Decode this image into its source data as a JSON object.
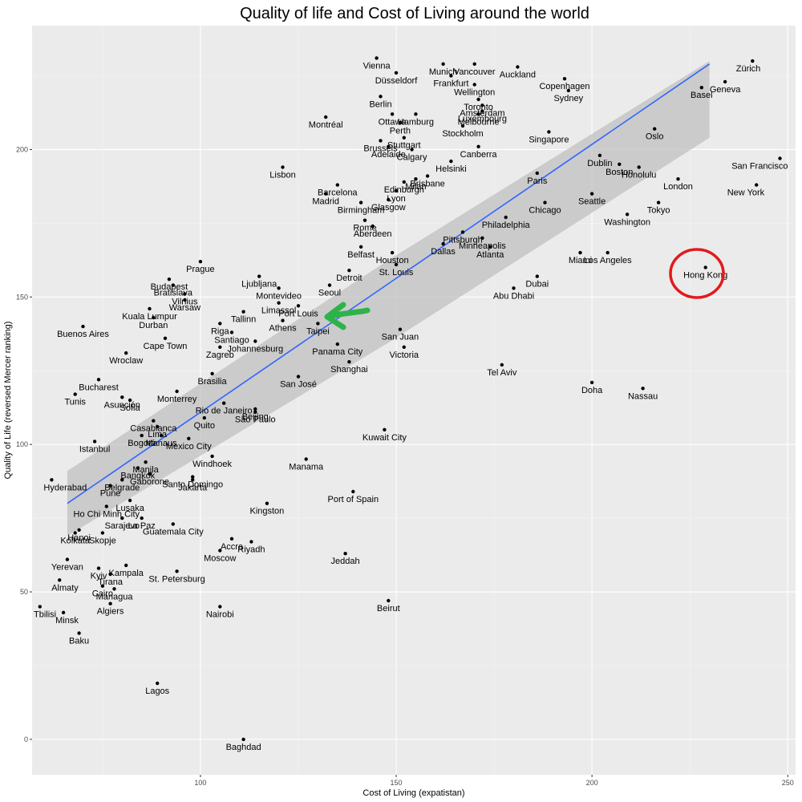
{
  "chart_data": {
    "type": "scatter",
    "title": "Quality of life and Cost of Living around the world",
    "xlabel": "Cost of Living (expatistan)",
    "ylabel": "Quality of Life (reversed Mercer ranking)",
    "xlim": [
      57,
      252
    ],
    "ylim": [
      -12,
      242
    ],
    "xticks": [
      100,
      150,
      200,
      250
    ],
    "yticks": [
      0,
      50,
      100,
      150,
      200
    ],
    "grid": true,
    "background": "#ebebeb",
    "grid_color": "#ffffff",
    "point_color": "#000000",
    "trend": {
      "method": "linear fit with confidence band",
      "color": "#3366ff",
      "band_color": "#bdbdbd",
      "x": [
        66,
        230
      ],
      "y": [
        80,
        229
      ],
      "band_upper": [
        91,
        230
      ],
      "band_lower": [
        69,
        204
      ]
    },
    "annotations": [
      {
        "type": "circle",
        "color": "#e31a1c",
        "label": "Hong Kong"
      },
      {
        "type": "arrow",
        "color": "#2db34a",
        "label": "Taipei"
      }
    ],
    "points": [
      {
        "city": "Zürich",
        "x": 241,
        "y": 230
      },
      {
        "city": "Geneva",
        "x": 234,
        "y": 223
      },
      {
        "city": "Vienna",
        "x": 145,
        "y": 231
      },
      {
        "city": "Munich",
        "x": 162,
        "y": 229
      },
      {
        "city": "Vancouver",
        "x": 170,
        "y": 229
      },
      {
        "city": "Auckland",
        "x": 181,
        "y": 228
      },
      {
        "city": "Düsseldorf",
        "x": 150,
        "y": 226
      },
      {
        "city": "Frankfurt",
        "x": 164,
        "y": 225
      },
      {
        "city": "Copenhagen",
        "x": 193,
        "y": 224
      },
      {
        "city": "Wellington",
        "x": 170,
        "y": 222
      },
      {
        "city": "Basel",
        "x": 228,
        "y": 221
      },
      {
        "city": "Berlin",
        "x": 146,
        "y": 218
      },
      {
        "city": "Toronto",
        "x": 171,
        "y": 217
      },
      {
        "city": "Amsterdam",
        "x": 172,
        "y": 215
      },
      {
        "city": "Sydney",
        "x": 194,
        "y": 220
      },
      {
        "city": "Ottawa",
        "x": 149,
        "y": 212
      },
      {
        "city": "Hamburg",
        "x": 155,
        "y": 212
      },
      {
        "city": "Melbourne",
        "x": 171,
        "y": 212
      },
      {
        "city": "Montréal",
        "x": 132,
        "y": 211
      },
      {
        "city": "Stockholm",
        "x": 167,
        "y": 208
      },
      {
        "city": "Luxembourg",
        "x": 172,
        "y": 213
      },
      {
        "city": "Oslo",
        "x": 216,
        "y": 207
      },
      {
        "city": "Perth",
        "x": 151,
        "y": 209
      },
      {
        "city": "Brussels",
        "x": 146,
        "y": 203
      },
      {
        "city": "Stuttgart",
        "x": 152,
        "y": 204
      },
      {
        "city": "Canberra",
        "x": 171,
        "y": 201
      },
      {
        "city": "Singapore",
        "x": 189,
        "y": 206
      },
      {
        "city": "Adelaide",
        "x": 148,
        "y": 201
      },
      {
        "city": "Calgary",
        "x": 154,
        "y": 200
      },
      {
        "city": "Dublin",
        "x": 202,
        "y": 198
      },
      {
        "city": "San Francisco",
        "x": 248,
        "y": 197
      },
      {
        "city": "Lisbon",
        "x": 121,
        "y": 194
      },
      {
        "city": "Helsinki",
        "x": 164,
        "y": 196
      },
      {
        "city": "Milan",
        "x": 155,
        "y": 190
      },
      {
        "city": "Brisbane",
        "x": 158,
        "y": 191
      },
      {
        "city": "Boston",
        "x": 207,
        "y": 195
      },
      {
        "city": "Honolulu",
        "x": 212,
        "y": 194
      },
      {
        "city": "Barcelona",
        "x": 135,
        "y": 188
      },
      {
        "city": "Edinburgh",
        "x": 152,
        "y": 189
      },
      {
        "city": "Paris",
        "x": 186,
        "y": 192
      },
      {
        "city": "London",
        "x": 222,
        "y": 190
      },
      {
        "city": "New York",
        "x": 242,
        "y": 188
      },
      {
        "city": "Lyon",
        "x": 150,
        "y": 186
      },
      {
        "city": "Madrid",
        "x": 132,
        "y": 185
      },
      {
        "city": "Glasgow",
        "x": 148,
        "y": 183
      },
      {
        "city": "Seattle",
        "x": 200,
        "y": 185
      },
      {
        "city": "Tokyo",
        "x": 217,
        "y": 182
      },
      {
        "city": "Birmingham",
        "x": 141,
        "y": 182
      },
      {
        "city": "Philadelphia",
        "x": 178,
        "y": 177
      },
      {
        "city": "Chicago",
        "x": 188,
        "y": 182
      },
      {
        "city": "Rome",
        "x": 142,
        "y": 176
      },
      {
        "city": "Washington",
        "x": 209,
        "y": 178
      },
      {
        "city": "Aberdeen",
        "x": 144,
        "y": 174
      },
      {
        "city": "Pittsburgh",
        "x": 167,
        "y": 172
      },
      {
        "city": "Minneapolis",
        "x": 172,
        "y": 170
      },
      {
        "city": "Belfast",
        "x": 141,
        "y": 167
      },
      {
        "city": "Houston",
        "x": 149,
        "y": 165
      },
      {
        "city": "Dallas",
        "x": 162,
        "y": 168
      },
      {
        "city": "Atlanta",
        "x": 174,
        "y": 167
      },
      {
        "city": "Miami",
        "x": 197,
        "y": 165
      },
      {
        "city": "Los Angeles",
        "x": 204,
        "y": 165
      },
      {
        "city": "Ljubljana",
        "x": 115,
        "y": 157
      },
      {
        "city": "Prague",
        "x": 100,
        "y": 162
      },
      {
        "city": "Detroit",
        "x": 138,
        "y": 159
      },
      {
        "city": "St. Louis",
        "x": 150,
        "y": 161
      },
      {
        "city": "Dubai",
        "x": 186,
        "y": 157
      },
      {
        "city": "Hong Kong",
        "x": 229,
        "y": 160
      },
      {
        "city": "Budapest",
        "x": 92,
        "y": 156
      },
      {
        "city": "Bratislava",
        "x": 93,
        "y": 154
      },
      {
        "city": "Montevideo",
        "x": 120,
        "y": 153
      },
      {
        "city": "Seoul",
        "x": 133,
        "y": 154
      },
      {
        "city": "Abu Dhabi",
        "x": 180,
        "y": 153
      },
      {
        "city": "Vilnius",
        "x": 96,
        "y": 151
      },
      {
        "city": "Kuala Lumpur",
        "x": 87,
        "y": 146
      },
      {
        "city": "Limassol",
        "x": 120,
        "y": 148
      },
      {
        "city": "Port Louis",
        "x": 125,
        "y": 147
      },
      {
        "city": "Warsaw",
        "x": 96,
        "y": 149
      },
      {
        "city": "Riga",
        "x": 105,
        "y": 141
      },
      {
        "city": "Tallinn",
        "x": 111,
        "y": 145
      },
      {
        "city": "Taipei",
        "x": 130,
        "y": 141
      },
      {
        "city": "Durban",
        "x": 88,
        "y": 143
      },
      {
        "city": "Athens",
        "x": 121,
        "y": 142
      },
      {
        "city": "Buenos Aires",
        "x": 70,
        "y": 140
      },
      {
        "city": "Santiago",
        "x": 108,
        "y": 138
      },
      {
        "city": "San Juan",
        "x": 151,
        "y": 139
      },
      {
        "city": "Panama City",
        "x": 135,
        "y": 134
      },
      {
        "city": "Victoria",
        "x": 152,
        "y": 133
      },
      {
        "city": "Cape Town",
        "x": 91,
        "y": 136
      },
      {
        "city": "Johannesburg",
        "x": 114,
        "y": 135
      },
      {
        "city": "Zagreb",
        "x": 105,
        "y": 133
      },
      {
        "city": "Wroclaw",
        "x": 81,
        "y": 131
      },
      {
        "city": "Shanghai",
        "x": 138,
        "y": 128
      },
      {
        "city": "Tel Aviv",
        "x": 177,
        "y": 127
      },
      {
        "city": "Brasilia",
        "x": 103,
        "y": 124
      },
      {
        "city": "San José",
        "x": 125,
        "y": 123
      },
      {
        "city": "Bucharest",
        "x": 74,
        "y": 122
      },
      {
        "city": "Doha",
        "x": 200,
        "y": 121
      },
      {
        "city": "Nassau",
        "x": 213,
        "y": 119
      },
      {
        "city": "Monterrey",
        "x": 94,
        "y": 118
      },
      {
        "city": "Tunis",
        "x": 68,
        "y": 117
      },
      {
        "city": "Asunción",
        "x": 80,
        "y": 116
      },
      {
        "city": "Sofia",
        "x": 82,
        "y": 115
      },
      {
        "city": "Rio de Janeiro",
        "x": 106,
        "y": 114
      },
      {
        "city": "São Paulo",
        "x": 114,
        "y": 111
      },
      {
        "city": "Casablanca",
        "x": 88,
        "y": 108
      },
      {
        "city": "Quito",
        "x": 101,
        "y": 109
      },
      {
        "city": "Lima",
        "x": 89,
        "y": 106
      },
      {
        "city": "Beijing",
        "x": 114,
        "y": 112
      },
      {
        "city": "Kuwait City",
        "x": 147,
        "y": 105
      },
      {
        "city": "Istanbul",
        "x": 73,
        "y": 101
      },
      {
        "city": "Bogotá",
        "x": 85,
        "y": 103
      },
      {
        "city": "Manaus",
        "x": 90,
        "y": 103
      },
      {
        "city": "Mexico City",
        "x": 97,
        "y": 102
      },
      {
        "city": "Windhoek",
        "x": 103,
        "y": 96
      },
      {
        "city": "Manama",
        "x": 127,
        "y": 95
      },
      {
        "city": "Bangkok",
        "x": 84,
        "y": 92
      },
      {
        "city": "Manila",
        "x": 86,
        "y": 94
      },
      {
        "city": "Santo Domingo",
        "x": 98,
        "y": 89
      },
      {
        "city": "Hyderabad",
        "x": 62,
        "y": 88
      },
      {
        "city": "Belgrade",
        "x": 80,
        "y": 88
      },
      {
        "city": "Gaborone",
        "x": 87,
        "y": 90
      },
      {
        "city": "Jakarta",
        "x": 98,
        "y": 88
      },
      {
        "city": "Pune",
        "x": 77,
        "y": 86
      },
      {
        "city": "Port of Spain",
        "x": 139,
        "y": 84
      },
      {
        "city": "Lusaka",
        "x": 82,
        "y": 81
      },
      {
        "city": "Ho Chi Minh City",
        "x": 76,
        "y": 79
      },
      {
        "city": "Kingston",
        "x": 117,
        "y": 80
      },
      {
        "city": "La Paz",
        "x": 85,
        "y": 75
      },
      {
        "city": "Hanoi",
        "x": 69,
        "y": 71
      },
      {
        "city": "Sarajevo",
        "x": 80,
        "y": 75
      },
      {
        "city": "Guatemala City",
        "x": 93,
        "y": 73
      },
      {
        "city": "Accra",
        "x": 108,
        "y": 68
      },
      {
        "city": "Riyadh",
        "x": 113,
        "y": 67
      },
      {
        "city": "Kolkata",
        "x": 68,
        "y": 70
      },
      {
        "city": "Skopje",
        "x": 75,
        "y": 70
      },
      {
        "city": "Moscow",
        "x": 105,
        "y": 64
      },
      {
        "city": "Yerevan",
        "x": 66,
        "y": 61
      },
      {
        "city": "Kampala",
        "x": 81,
        "y": 59
      },
      {
        "city": "Jeddah",
        "x": 137,
        "y": 63
      },
      {
        "city": "Kyiv",
        "x": 74,
        "y": 58
      },
      {
        "city": "Tirana",
        "x": 77,
        "y": 56
      },
      {
        "city": "St. Petersburg",
        "x": 94,
        "y": 57
      },
      {
        "city": "Almaty",
        "x": 64,
        "y": 54
      },
      {
        "city": "Cairo",
        "x": 75,
        "y": 52
      },
      {
        "city": "Managua",
        "x": 78,
        "y": 51
      },
      {
        "city": "Tbilisi",
        "x": 59,
        "y": 45
      },
      {
        "city": "Beirut",
        "x": 148,
        "y": 47
      },
      {
        "city": "Nairobi",
        "x": 105,
        "y": 45
      },
      {
        "city": "Algiers",
        "x": 77,
        "y": 46
      },
      {
        "city": "Minsk",
        "x": 65,
        "y": 43
      },
      {
        "city": "Baku",
        "x": 69,
        "y": 36
      },
      {
        "city": "Lagos",
        "x": 89,
        "y": 19
      },
      {
        "city": "Baghdad",
        "x": 111,
        "y": 0
      }
    ]
  }
}
